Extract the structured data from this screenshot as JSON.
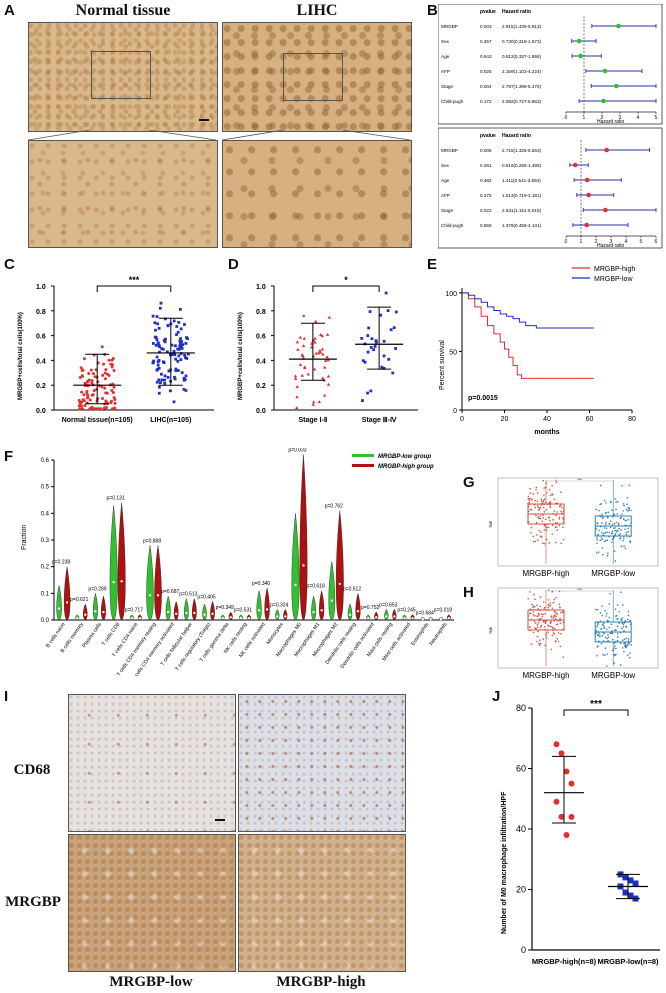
{
  "panel_labels": {
    "A": "A",
    "B": "B",
    "C": "C",
    "D": "D",
    "E": "E",
    "F": "F",
    "G": "G",
    "H": "H",
    "I": "I",
    "J": "J"
  },
  "panelA": {
    "title_left": "Normal tissue",
    "title_right": "LIHC"
  },
  "panelB": {
    "col_pvalue": "pvalue",
    "col_hr": "Hazard ratio",
    "axis_label": "Hazard ratio",
    "top": {
      "rows": [
        {
          "name": "MRGBP",
          "p": "0.003",
          "hr": "2.915(1.436-5.913)",
          "est": 2.915,
          "lo": 1.436,
          "hi": 5.913
        },
        {
          "name": "Sex",
          "p": "0.457",
          "hr": "0.730(0.318-1.673)",
          "est": 0.73,
          "lo": 0.318,
          "hi": 1.673
        },
        {
          "name": "Age",
          "p": "0.643",
          "hr": "0.812(0.337-1.958)",
          "est": 0.812,
          "lo": 0.337,
          "hi": 1.958
        },
        {
          "name": "AFP",
          "p": "0.025",
          "hr": "2.169(1.103-4.224)",
          "est": 2.169,
          "lo": 1.103,
          "hi": 4.224
        },
        {
          "name": "Stage",
          "p": "0.004",
          "hr": "2.797(1.398-5.476)",
          "est": 2.797,
          "lo": 1.398,
          "hi": 5.476
        },
        {
          "name": "Child-pugh",
          "p": "0.172",
          "hr": "2.082(0.727-5.963)",
          "est": 2.082,
          "lo": 0.727,
          "hi": 5.963
        }
      ],
      "ticks": [
        "0",
        "1",
        "2",
        "3",
        "4",
        "5"
      ]
    },
    "bottom": {
      "rows": [
        {
          "name": "MRGBP",
          "p": "0.005",
          "hr": "2.715(1.325-5.563)",
          "est": 2.715,
          "lo": 1.325,
          "hi": 5.563
        },
        {
          "name": "Sex",
          "p": "0.281",
          "hr": "0.616(0.255-1.485)",
          "est": 0.616,
          "lo": 0.255,
          "hi": 1.485
        },
        {
          "name": "Age",
          "p": "0.482",
          "hr": "1.411(0.541-3.684)",
          "est": 1.411,
          "lo": 0.541,
          "hi": 3.684
        },
        {
          "name": "AFP",
          "p": "0.275",
          "hr": "1.513(0.719-3.181)",
          "est": 1.513,
          "lo": 0.719,
          "hi": 3.181
        },
        {
          "name": "Stage",
          "p": "0.022",
          "hr": "2.631(1.151-6.015)",
          "est": 2.631,
          "lo": 1.151,
          "hi": 6.015
        },
        {
          "name": "Child-pugh",
          "p": "0.569",
          "hr": "1.376(0.458-4.131)",
          "est": 1.376,
          "lo": 0.458,
          "hi": 4.131
        }
      ],
      "ticks": [
        "0",
        "1",
        "2",
        "3",
        "4",
        "5",
        "6"
      ]
    }
  },
  "chart_data": [
    {
      "panel": "C",
      "type": "scatter",
      "ylabel": "MRGBP+cells/total cells(100%)",
      "ylim": [
        0,
        1.0
      ],
      "ticks": [
        "0.0",
        "0.2",
        "0.4",
        "0.6",
        "0.8",
        "1.0"
      ],
      "categories": [
        "Normal tissue(n=105)",
        "LIHC(n=105)"
      ],
      "means": [
        0.2,
        0.46
      ],
      "sd_low": [
        0.05,
        0.2
      ],
      "sd_high": [
        0.45,
        0.74
      ],
      "significance": "***"
    },
    {
      "panel": "D",
      "type": "scatter",
      "ylabel": "MRGBP+cells/total cells(100%)",
      "ylim": [
        0,
        1.0
      ],
      "ticks": [
        "0.0",
        "0.2",
        "0.4",
        "0.6",
        "0.8",
        "1.0"
      ],
      "categories": [
        "Stage Ⅰ-Ⅱ",
        "Stage Ⅲ-Ⅳ"
      ],
      "means": [
        0.41,
        0.53
      ],
      "sd_low": [
        0.24,
        0.33
      ],
      "sd_high": [
        0.7,
        0.83
      ],
      "significance": "*"
    },
    {
      "panel": "E",
      "type": "line",
      "ylabel": "Percent survival",
      "xlabel": "months",
      "xticks": [
        "0",
        "20",
        "40",
        "60",
        "80"
      ],
      "yticks": [
        "0",
        "50",
        "100"
      ],
      "pvalue_text": "p=0.0015",
      "series": [
        {
          "name": "MRGBP-high",
          "color": "#e03030",
          "x": [
            0,
            3,
            6,
            9,
            12,
            15,
            18,
            20,
            22,
            24,
            26,
            28,
            30,
            40,
            50,
            62
          ],
          "y": [
            100,
            95,
            88,
            80,
            72,
            65,
            58,
            52,
            45,
            38,
            30,
            27,
            27,
            27,
            27,
            27
          ]
        },
        {
          "name": "MRGBP-low",
          "color": "#2030c0",
          "x": [
            0,
            3,
            6,
            9,
            12,
            15,
            18,
            21,
            24,
            27,
            30,
            35,
            40,
            50,
            62
          ],
          "y": [
            100,
            98,
            95,
            92,
            88,
            85,
            82,
            80,
            78,
            75,
            72,
            70,
            70,
            70,
            70
          ]
        }
      ]
    },
    {
      "panel": "F",
      "type": "bar",
      "ylabel": "Fraction",
      "ylim": [
        0,
        0.6
      ],
      "yticks": [
        "0.0",
        "0.1",
        "0.2",
        "0.3",
        "0.4",
        "0.5",
        "0.6"
      ],
      "legend": [
        "MRGBP-low group",
        "MRGBP-high group"
      ],
      "categories": [
        "B cells naive",
        "B cells memory",
        "Plasma cells",
        "T cells CD8",
        "T cells CD4 naive",
        "T cells CD4 memory resting",
        "T cells CD4 memory activated",
        "T cells follicular helper",
        "T cells regulatory (Tregs)",
        "T cells gamma delta",
        "NK cells resting",
        "NK cells activated",
        "Monocytes",
        "Macrophages M0",
        "Macrophages M1",
        "Macrophages M2",
        "Dendritic cells resting",
        "Dendritic cells activated",
        "Mast cells resting",
        "Mast cells activated",
        "Eosinophils",
        "Neutrophils"
      ],
      "pvalues": [
        "p=0.238",
        "p=0.621",
        "p=0.289",
        "p=0.131",
        "p=0.717",
        "p=0.888",
        "p=0.687",
        "p=0.513",
        "p=0.405",
        "p=0.349",
        "p=0.531",
        "p=0.340",
        "p=0.324",
        "p=0.033",
        "p=0.618",
        "p=0.762",
        "p=0.512",
        "p=0.752",
        "p=0.653",
        "p=0.245",
        "p=0.684",
        "p=0.018"
      ],
      "series": [
        {
          "name": "MRGBP-low group",
          "max": [
            0.13,
            0.02,
            0.1,
            0.43,
            0.02,
            0.28,
            0.09,
            0.08,
            0.06,
            0.02,
            0.02,
            0.11,
            0.04,
            0.4,
            0.09,
            0.22,
            0.06,
            0.02,
            0.04,
            0.02,
            0.01,
            0.01
          ]
        },
        {
          "name": "MRGBP-high group",
          "max": [
            0.2,
            0.06,
            0.09,
            0.44,
            0.02,
            0.28,
            0.07,
            0.08,
            0.07,
            0.03,
            0.02,
            0.12,
            0.04,
            0.62,
            0.11,
            0.41,
            0.1,
            0.03,
            0.04,
            0.02,
            0.01,
            0.02
          ]
        }
      ]
    },
    {
      "panel": "G",
      "type": "scatter",
      "categories": [
        "MRGBP-high",
        "MRGBP-low"
      ],
      "significance": "***"
    },
    {
      "panel": "H",
      "type": "scatter",
      "categories": [
        "MRGBP-high",
        "MRGBP-low"
      ],
      "significance": "***"
    },
    {
      "panel": "J",
      "type": "scatter",
      "ylabel": "Number of M0 macrophage infiltration/HPF",
      "ylim": [
        0,
        80
      ],
      "yticks": [
        "0",
        "20",
        "40",
        "60",
        "80"
      ],
      "categories": [
        "MRGBP-high(n=8)",
        "MRGBP-low(n=8)"
      ],
      "means": [
        52,
        21
      ],
      "sd_low": [
        42,
        17
      ],
      "sd_high": [
        64,
        25
      ],
      "significance": "***",
      "points": [
        [
          68,
          65,
          59,
          55,
          49,
          44,
          38,
          44
        ],
        [
          25,
          24,
          23,
          22,
          21,
          19,
          18,
          17
        ]
      ]
    }
  ],
  "panelI": {
    "row_top": "CD68",
    "row_bottom": "MRGBP",
    "col_left": "MRGBP-low",
    "col_right": "MRGBP-high"
  },
  "colors": {
    "red": "#e03030",
    "blue": "#2030c0",
    "green": "#30c030",
    "darkred": "#b01010"
  }
}
